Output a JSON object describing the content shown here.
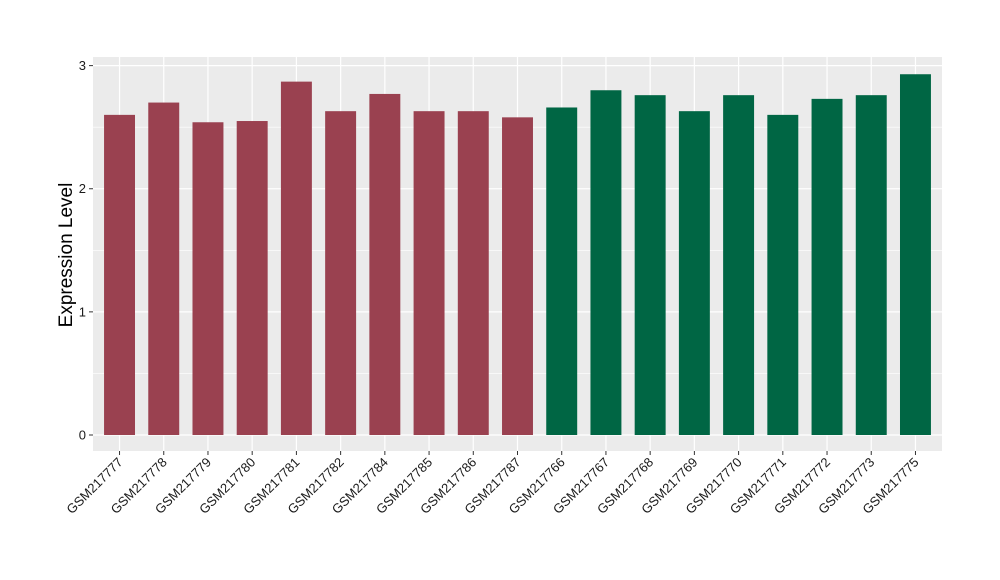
{
  "chart_data": {
    "type": "bar",
    "title": "",
    "xlabel": "",
    "ylabel": "Expression Level",
    "ylim": [
      -0.13,
      3.07
    ],
    "yticks": [
      0,
      1,
      2,
      3
    ],
    "grid": true,
    "legend": "none",
    "categories": [
      "GSM217777",
      "GSM217778",
      "GSM217779",
      "GSM217780",
      "GSM217781",
      "GSM217782",
      "GSM217784",
      "GSM217785",
      "GSM217786",
      "GSM217787",
      "GSM217766",
      "GSM217767",
      "GSM217768",
      "GSM217769",
      "GSM217770",
      "GSM217771",
      "GSM217772",
      "GSM217773",
      "GSM217775"
    ],
    "values": [
      2.6,
      2.7,
      2.54,
      2.55,
      2.87,
      2.63,
      2.77,
      2.63,
      2.63,
      2.58,
      2.66,
      2.8,
      2.76,
      2.63,
      2.76,
      2.6,
      2.73,
      2.76,
      2.93
    ],
    "groups": [
      1,
      1,
      1,
      1,
      1,
      1,
      1,
      1,
      1,
      1,
      2,
      2,
      2,
      2,
      2,
      2,
      2,
      2,
      2
    ],
    "colors": {
      "group1": "#9a4150",
      "group2": "#006644",
      "panel": "#ebebeb",
      "grid": "#ffffff"
    }
  }
}
